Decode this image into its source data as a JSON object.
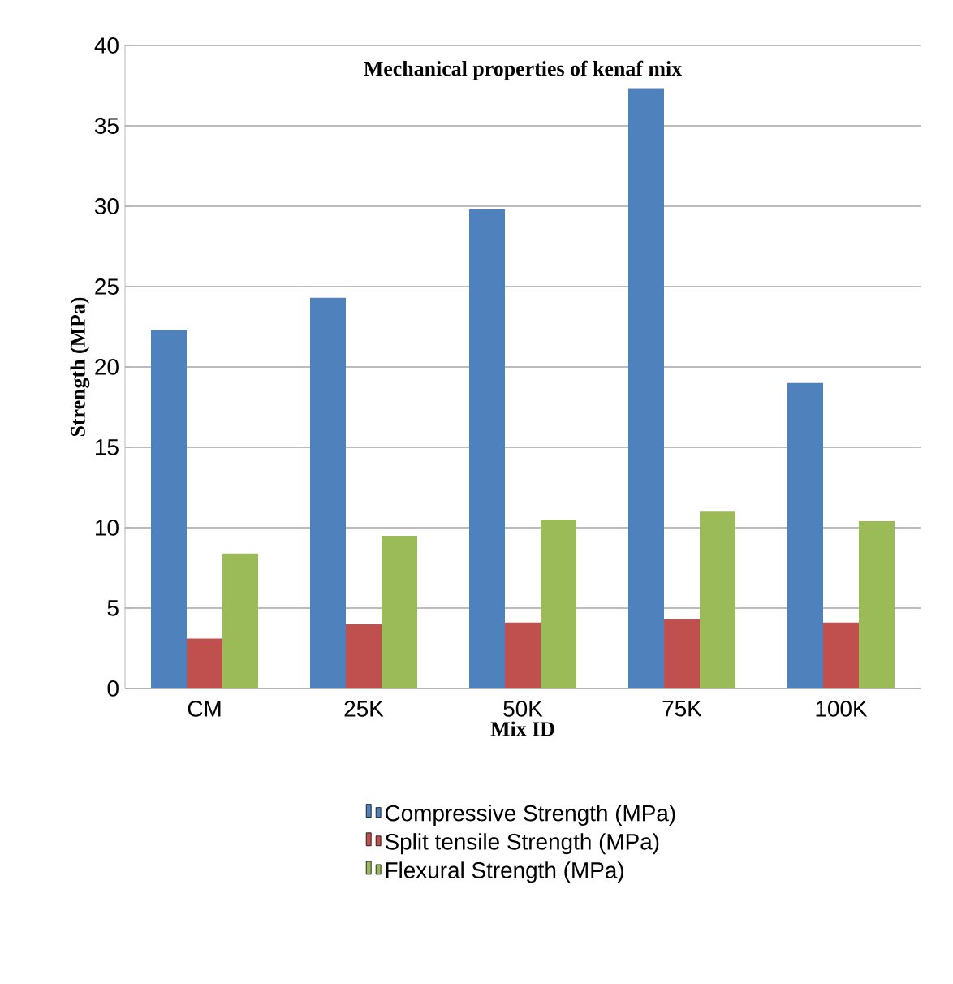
{
  "chart_data": {
    "type": "bar",
    "title": "Mechanical properties of kenaf mix",
    "xlabel": "Mix ID",
    "ylabel": "Strength (MPa)",
    "categories": [
      "CM",
      "25K",
      "50K",
      "75K",
      "100K"
    ],
    "series": [
      {
        "name": "Compressive Strength (MPa)",
        "color": "#4f81bd",
        "values": [
          22.3,
          24.3,
          29.8,
          37.3,
          19.0
        ]
      },
      {
        "name": "Split tensile Strength (MPa)",
        "color": "#c0504d",
        "values": [
          3.1,
          4.0,
          4.1,
          4.3,
          4.1
        ]
      },
      {
        "name": "Flexural Strength (MPa)",
        "color": "#9bbb59",
        "values": [
          8.4,
          9.5,
          10.5,
          11.0,
          10.4
        ]
      }
    ],
    "ylim": [
      0,
      40
    ],
    "yticks": [
      0,
      5,
      10,
      15,
      20,
      25,
      30,
      35,
      40
    ],
    "grid": "y",
    "legend": "bottom"
  }
}
